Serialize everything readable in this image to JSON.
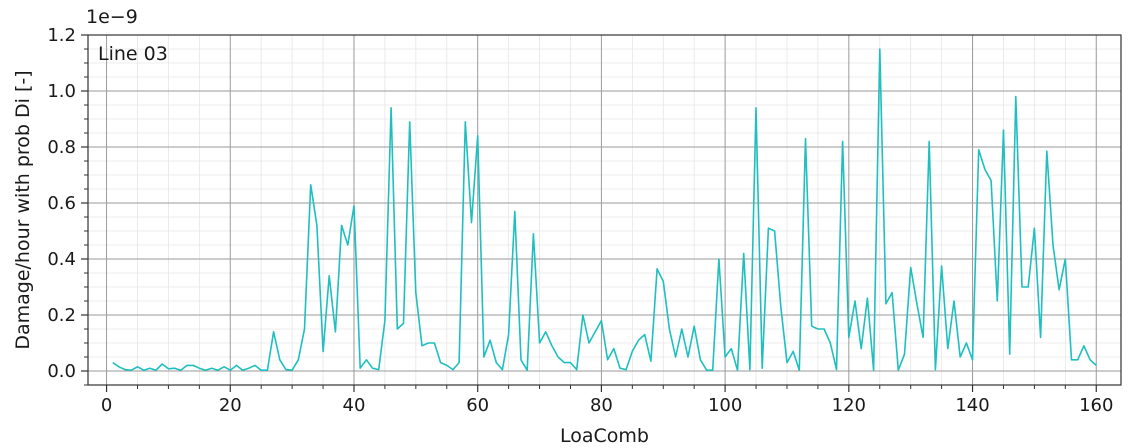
{
  "chart_data": {
    "type": "line",
    "title": "",
    "xlabel": "LoaComb",
    "ylabel": "Damage/hour with prob Di [-]",
    "y_scale_label": "1e−9",
    "annotation": "Line 03",
    "xlim": [
      -3,
      164
    ],
    "ylim": [
      -0.05,
      1.2
    ],
    "x_ticks": [
      0,
      20,
      40,
      60,
      80,
      100,
      120,
      140,
      160
    ],
    "y_ticks": [
      0.0,
      0.2,
      0.4,
      0.6,
      0.8,
      1.0,
      1.2
    ],
    "x_tick_labels": [
      "0",
      "20",
      "40",
      "60",
      "80",
      "100",
      "120",
      "140",
      "160"
    ],
    "y_tick_labels": [
      "0.0",
      "0.2",
      "0.4",
      "0.6",
      "0.8",
      "1.0",
      "1.2"
    ],
    "grid": true,
    "minor_grid": true,
    "line_color": "#1fbfbf",
    "series": [
      {
        "x": [
          1,
          2,
          3,
          4,
          5,
          6,
          7,
          8,
          9,
          10,
          11,
          12,
          13,
          14,
          15,
          16,
          17,
          18,
          19,
          20,
          21,
          22,
          23,
          24,
          25,
          26,
          27,
          28,
          29,
          30,
          31,
          32,
          33,
          34,
          35,
          36,
          37,
          38,
          39,
          40,
          41,
          42,
          43,
          44,
          45,
          46,
          47,
          48,
          49,
          50,
          51,
          52,
          53,
          54,
          55,
          56,
          57,
          58,
          59,
          60,
          61,
          62,
          63,
          64,
          65,
          66,
          67,
          68,
          69,
          70,
          71,
          72,
          73,
          74,
          75,
          76,
          77,
          78,
          79,
          80,
          81,
          82,
          83,
          84,
          85,
          86,
          87,
          88,
          89,
          90,
          91,
          92,
          93,
          94,
          95,
          96,
          97,
          98,
          99,
          100,
          101,
          102,
          103,
          104,
          105,
          106,
          107,
          108,
          109,
          110,
          111,
          112,
          113,
          114,
          115,
          116,
          117,
          118,
          119,
          120,
          121,
          122,
          123,
          124,
          125,
          126,
          127,
          128,
          129,
          130,
          131,
          132,
          133,
          134,
          135,
          136,
          137,
          138,
          139,
          140,
          141,
          142,
          143,
          144,
          145,
          146,
          147,
          148,
          149,
          150,
          151,
          152,
          153,
          154,
          155,
          156,
          157,
          158,
          159,
          160
        ],
        "y": [
          0.03,
          0.015,
          0.005,
          0.003,
          0.015,
          0.003,
          0.01,
          0.003,
          0.025,
          0.008,
          0.01,
          0.003,
          0.02,
          0.02,
          0.01,
          0.003,
          0.01,
          0.003,
          0.015,
          0.003,
          0.02,
          0.003,
          0.01,
          0.02,
          0.003,
          0.003,
          0.14,
          0.04,
          0.005,
          0.003,
          0.04,
          0.15,
          0.665,
          0.52,
          0.07,
          0.34,
          0.14,
          0.52,
          0.45,
          0.59,
          0.01,
          0.04,
          0.01,
          0.005,
          0.18,
          0.94,
          0.15,
          0.17,
          0.89,
          0.28,
          0.09,
          0.1,
          0.1,
          0.03,
          0.02,
          0.005,
          0.03,
          0.89,
          0.53,
          0.84,
          0.05,
          0.11,
          0.03,
          0.005,
          0.13,
          0.57,
          0.04,
          0.003,
          0.49,
          0.1,
          0.14,
          0.09,
          0.05,
          0.03,
          0.03,
          0.005,
          0.2,
          0.1,
          0.14,
          0.18,
          0.04,
          0.08,
          0.01,
          0.005,
          0.07,
          0.11,
          0.13,
          0.035,
          0.365,
          0.32,
          0.15,
          0.05,
          0.15,
          0.05,
          0.16,
          0.04,
          0.003,
          0.003,
          0.4,
          0.05,
          0.08,
          0.003,
          0.42,
          0.005,
          0.94,
          0.01,
          0.51,
          0.5,
          0.23,
          0.03,
          0.07,
          0.003,
          0.83,
          0.16,
          0.15,
          0.15,
          0.1,
          0.005,
          0.82,
          0.12,
          0.25,
          0.08,
          0.26,
          0.003,
          1.15,
          0.24,
          0.28,
          0.003,
          0.06,
          0.37,
          0.24,
          0.12,
          0.82,
          0.005,
          0.375,
          0.08,
          0.25,
          0.05,
          0.1,
          0.04,
          0.79,
          0.72,
          0.68,
          0.25,
          0.86,
          0.06,
          0.98,
          0.3,
          0.3,
          0.51,
          0.12,
          0.785,
          0.45,
          0.29,
          0.4,
          0.04,
          0.04,
          0.09,
          0.04,
          0.02
        ]
      }
    ]
  }
}
